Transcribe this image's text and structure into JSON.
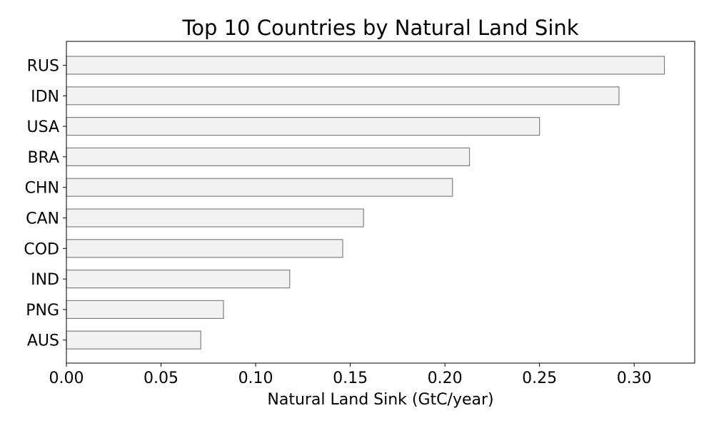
{
  "chart_data": {
    "type": "bar",
    "orientation": "horizontal",
    "title": "Top 10 Countries by Natural Land Sink",
    "xlabel": "Natural Land Sink (GtC/year)",
    "ylabel": "",
    "categories": [
      "RUS",
      "IDN",
      "USA",
      "BRA",
      "CHN",
      "CAN",
      "COD",
      "IND",
      "PNG",
      "AUS"
    ],
    "values": [
      0.316,
      0.292,
      0.25,
      0.213,
      0.204,
      0.157,
      0.146,
      0.118,
      0.083,
      0.071
    ],
    "xlim": [
      0,
      0.332
    ],
    "xticks": [
      0.0,
      0.05,
      0.1,
      0.15,
      0.2,
      0.25,
      0.3
    ],
    "xtick_labels": [
      "0.00",
      "0.05",
      "0.10",
      "0.15",
      "0.20",
      "0.25",
      "0.30"
    ],
    "grid": false,
    "colors": {
      "bar_fill": "#f2f2f2",
      "bar_edge": "#808080"
    }
  }
}
